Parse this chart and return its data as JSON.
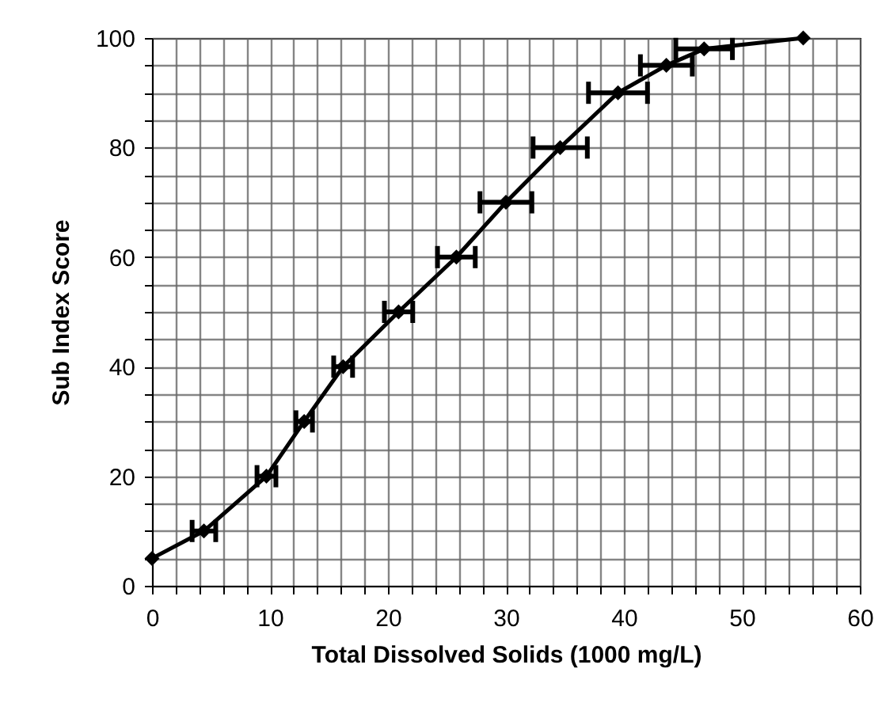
{
  "chart_data": {
    "type": "line",
    "xlabel": "Total Dissolved Solids (1000 mg/L)",
    "ylabel": "Sub Index Score",
    "x": [
      0,
      4.4,
      9.7,
      12.9,
      16.2,
      20.9,
      25.8,
      30,
      34.6,
      39.5,
      43.6,
      46.8,
      55.2
    ],
    "series": [
      {
        "color": "#000000",
        "values": [
          5,
          10,
          20,
          30,
          40,
          50,
          60,
          70,
          80,
          90,
          95,
          98,
          100
        ],
        "xerrors": [
          null,
          1,
          0.8,
          0.7,
          0.8,
          1.2,
          1.6,
          2.2,
          2.3,
          2.5,
          2.2,
          2.4,
          null
        ]
      }
    ],
    "xlim": [
      0,
      60
    ],
    "xticks": [
      0,
      {
        "value": 2,
        "label": null
      },
      {
        "value": 4,
        "label": null
      },
      {
        "value": 6,
        "label": null
      },
      {
        "value": 8,
        "label": null
      },
      10,
      {
        "value": 12,
        "label": null
      },
      {
        "value": 14,
        "label": null
      },
      {
        "value": 16,
        "label": null
      },
      {
        "value": 18,
        "label": null
      },
      20,
      {
        "value": 22,
        "label": null
      },
      {
        "value": 24,
        "label": null
      },
      {
        "value": 26,
        "label": null
      },
      {
        "value": 28,
        "label": null
      },
      30,
      {
        "value": 32,
        "label": null
      },
      {
        "value": 34,
        "label": null
      },
      {
        "value": 36,
        "label": null
      },
      {
        "value": 38,
        "label": null
      },
      40,
      {
        "value": 42,
        "label": null
      },
      {
        "value": 44,
        "label": null
      },
      {
        "value": 46,
        "label": null
      },
      {
        "value": 48,
        "label": null
      },
      50,
      {
        "value": 52,
        "label": null
      },
      {
        "value": 54,
        "label": null
      },
      {
        "value": 56,
        "label": null
      },
      {
        "value": 58,
        "label": null
      },
      60
    ],
    "ylim": [
      0,
      100
    ],
    "yticks": [
      0,
      {
        "value": 5,
        "label": null
      },
      {
        "value": 10,
        "label": null
      },
      {
        "value": 15,
        "label": null
      },
      20,
      {
        "value": 25,
        "label": null
      },
      {
        "value": 30,
        "label": null
      },
      {
        "value": 35,
        "label": null
      },
      40,
      {
        "value": 45,
        "label": null
      },
      {
        "value": 50,
        "label": null
      },
      {
        "value": 55,
        "label": null
      },
      60,
      {
        "value": 65,
        "label": null
      },
      {
        "value": 70,
        "label": null
      },
      {
        "value": 75,
        "label": null
      },
      80,
      {
        "value": 85,
        "label": null
      },
      {
        "value": 90,
        "label": null
      },
      {
        "value": 95,
        "label": null
      },
      100
    ],
    "grid": true,
    "marker": "diamond",
    "line_style": "solid"
  }
}
